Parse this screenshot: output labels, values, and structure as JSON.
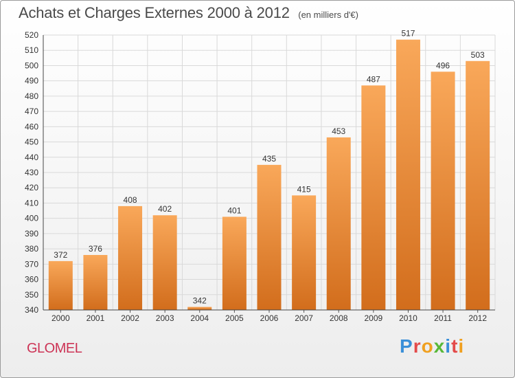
{
  "header": {
    "title": "Achats et Charges Externes 2000 à 2012",
    "subtitle": "(en milliers d'€)"
  },
  "footer": {
    "commune": "GLOMEL",
    "logo_text": "Proxiti",
    "logo_colors": [
      "#3a8fd8",
      "#e34a4a",
      "#f0a020",
      "#58b838",
      "#3a8fd8",
      "#e34a4a",
      "#f0a020"
    ]
  },
  "colors": {
    "bar_light": "#f9a85a",
    "bar_dark": "#d26d1c",
    "grid": "#d9d9d9",
    "axis_text": "#333333",
    "commune": "#cc3355"
  },
  "chart_data": {
    "type": "bar",
    "title": "Achats et Charges Externes 2000 à 2012",
    "subtitle": "(en milliers d'€)",
    "categories": [
      "2000",
      "2001",
      "2002",
      "2003",
      "2004",
      "2005",
      "2006",
      "2007",
      "2008",
      "2009",
      "2010",
      "2011",
      "2012"
    ],
    "values": [
      372,
      376,
      408,
      402,
      342,
      401,
      435,
      415,
      453,
      487,
      517,
      496,
      503
    ],
    "ylim": [
      340,
      520
    ],
    "ytick_step": 10,
    "xlabel": "",
    "ylabel": "",
    "grid": true,
    "data_labels": true
  }
}
